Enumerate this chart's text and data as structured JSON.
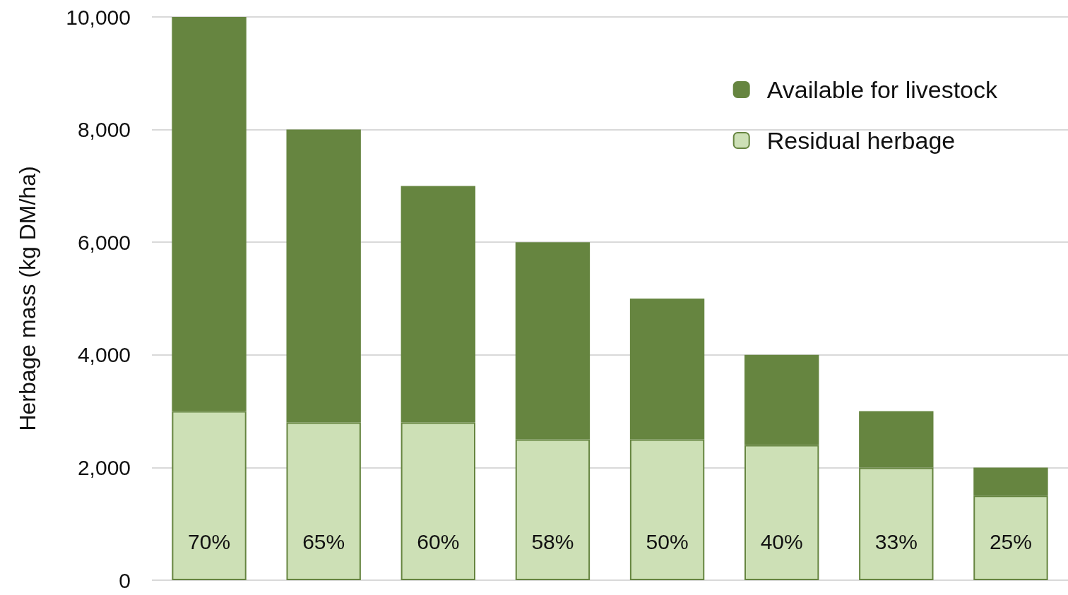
{
  "chart_data": {
    "type": "bar",
    "ylabel": "Herbage mass (kg DM/ha)",
    "categories": [
      null,
      null,
      null,
      null,
      null,
      null,
      null,
      null
    ],
    "stacked": true,
    "series": [
      {
        "name": "Residual herbage",
        "color": "#cde0b6",
        "values": [
          3000,
          2800,
          2800,
          2500,
          2500,
          2400,
          2000,
          1500
        ]
      },
      {
        "name": "Available for livestock",
        "color": "#668540",
        "values": [
          7000,
          5200,
          4200,
          3500,
          2500,
          1600,
          1000,
          500
        ]
      }
    ],
    "annotations": [
      "70%",
      "65%",
      "60%",
      "58%",
      "50%",
      "40%",
      "33%",
      "25%"
    ],
    "ylim": [
      0,
      10000
    ],
    "yticks": [
      0,
      {
        "value": 2000,
        "label": "2,000"
      },
      {
        "value": 4000,
        "label": "4,000"
      },
      {
        "value": 6000,
        "label": "6,000"
      },
      {
        "value": 8000,
        "label": "8,000"
      },
      {
        "value": 10000,
        "label": "10,000"
      }
    ],
    "grid": "y",
    "legend": "top right"
  }
}
